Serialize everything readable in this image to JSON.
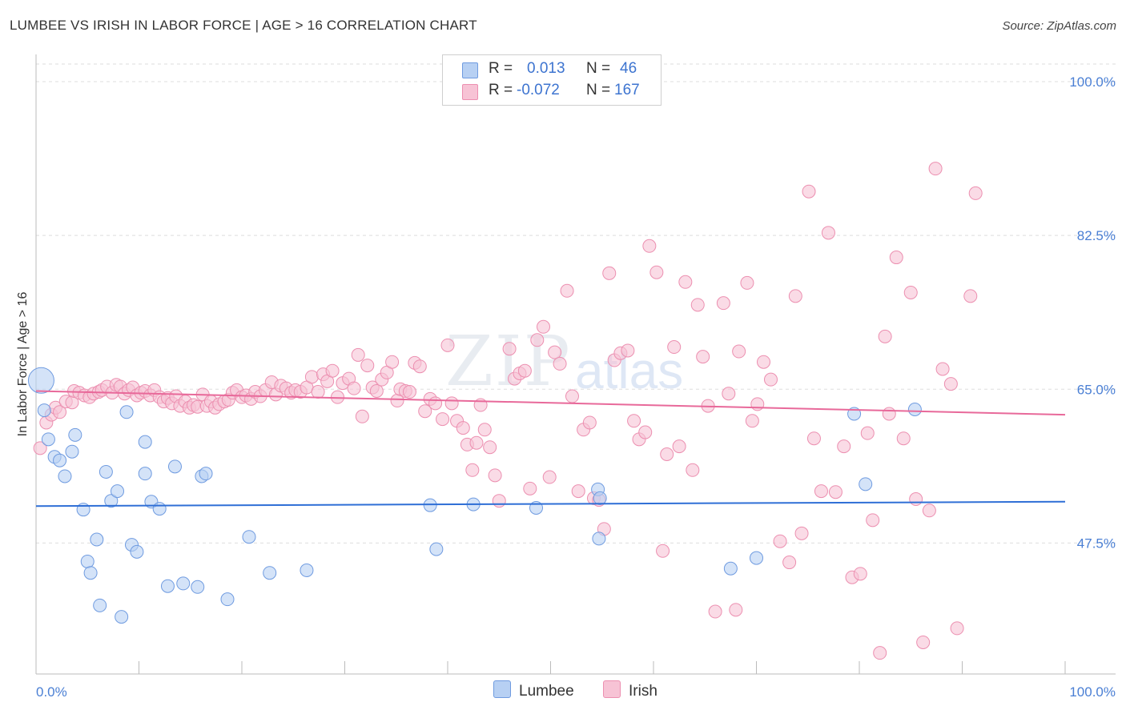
{
  "title": "LUMBEE VS IRISH IN LABOR FORCE | AGE > 16 CORRELATION CHART",
  "source": "Source: ZipAtlas.com",
  "watermark": {
    "zip": "ZIP",
    "atlas": "atlas"
  },
  "legend": {
    "lumbee": {
      "r_label": "R =",
      "r_value": "0.013",
      "n_label": "N =",
      "n_value": "46"
    },
    "irish": {
      "r_label": "R =",
      "r_value": "-0.072",
      "n_label": "N =",
      "n_value": "167"
    }
  },
  "bottom_legend": {
    "lumbee": "Lumbee",
    "irish": "Irish"
  },
  "colors": {
    "lumbee_fill": "#b7d0f3",
    "lumbee_stroke": "#6f9be0",
    "lumbee_line": "#2f6fd6",
    "irish_fill": "#f7c3d5",
    "irish_stroke": "#ec8fb0",
    "irish_line": "#e8699a",
    "axis_text": "#4a7fd4",
    "grid": "#dddddd"
  },
  "chart_data": {
    "type": "scatter",
    "title": "LUMBEE VS IRISH IN LABOR FORCE | AGE > 16 CORRELATION CHART",
    "xlabel": "",
    "ylabel": "In Labor Force | Age > 16",
    "xlim": [
      0,
      100
    ],
    "ylim": [
      32.6,
      102.0
    ],
    "x_tick_labels": [
      "0.0%",
      "100.0%"
    ],
    "y_ticks": [
      47.5,
      65.0,
      82.5,
      100.0
    ],
    "y_tick_labels": [
      "47.5%",
      "65.0%",
      "82.5%",
      "100.0%"
    ],
    "grid": true,
    "series": [
      {
        "name": "Lumbee",
        "R": 0.013,
        "N": 46,
        "trend": {
          "x": [
            0,
            100
          ],
          "y": [
            51.7,
            52.2
          ]
        },
        "points": [
          [
            0.5,
            66.0
          ],
          [
            0.8,
            62.6
          ],
          [
            1.2,
            59.3
          ],
          [
            1.8,
            57.3
          ],
          [
            2.3,
            56.9
          ],
          [
            2.8,
            55.1
          ],
          [
            3.5,
            57.9
          ],
          [
            3.8,
            59.8
          ],
          [
            4.6,
            51.3
          ],
          [
            5.0,
            45.4
          ],
          [
            5.3,
            44.1
          ],
          [
            5.9,
            47.9
          ],
          [
            6.2,
            40.4
          ],
          [
            6.8,
            55.6
          ],
          [
            7.3,
            52.3
          ],
          [
            7.9,
            53.4
          ],
          [
            8.3,
            39.1
          ],
          [
            8.8,
            62.4
          ],
          [
            9.3,
            47.3
          ],
          [
            9.8,
            46.5
          ],
          [
            10.6,
            59.0
          ],
          [
            10.6,
            55.4
          ],
          [
            11.2,
            52.2
          ],
          [
            12.0,
            51.4
          ],
          [
            12.8,
            42.6
          ],
          [
            13.5,
            56.2
          ],
          [
            14.3,
            42.9
          ],
          [
            15.7,
            42.5
          ],
          [
            16.1,
            55.1
          ],
          [
            16.5,
            55.4
          ],
          [
            18.6,
            41.1
          ],
          [
            20.7,
            48.2
          ],
          [
            22.7,
            44.1
          ],
          [
            26.3,
            44.4
          ],
          [
            38.3,
            51.8
          ],
          [
            38.9,
            46.8
          ],
          [
            42.5,
            51.9
          ],
          [
            48.6,
            51.5
          ],
          [
            54.6,
            53.6
          ],
          [
            54.7,
            48.0
          ],
          [
            54.8,
            52.6
          ],
          [
            67.5,
            44.6
          ],
          [
            70.0,
            45.8
          ],
          [
            79.5,
            62.2
          ],
          [
            80.6,
            54.2
          ],
          [
            85.4,
            62.7
          ]
        ]
      },
      {
        "name": "Irish",
        "R": -0.072,
        "N": 167,
        "trend": {
          "x": [
            0,
            100
          ],
          "y": [
            64.8,
            62.1
          ]
        },
        "points": [
          [
            0.4,
            58.3
          ],
          [
            1.0,
            61.2
          ],
          [
            1.5,
            62.1
          ],
          [
            1.9,
            62.9
          ],
          [
            2.3,
            62.4
          ],
          [
            2.9,
            63.6
          ],
          [
            3.5,
            63.5
          ],
          [
            3.7,
            64.8
          ],
          [
            4.2,
            64.6
          ],
          [
            4.7,
            64.3
          ],
          [
            5.2,
            64.1
          ],
          [
            5.6,
            64.5
          ],
          [
            6.1,
            64.7
          ],
          [
            6.4,
            64.9
          ],
          [
            6.9,
            65.3
          ],
          [
            7.4,
            64.6
          ],
          [
            7.8,
            65.5
          ],
          [
            8.2,
            65.3
          ],
          [
            8.6,
            64.5
          ],
          [
            9.0,
            64.9
          ],
          [
            9.4,
            65.2
          ],
          [
            9.8,
            64.3
          ],
          [
            10.2,
            64.6
          ],
          [
            10.6,
            64.8
          ],
          [
            11.1,
            64.3
          ],
          [
            11.5,
            64.9
          ],
          [
            12.0,
            64.1
          ],
          [
            12.4,
            63.6
          ],
          [
            12.8,
            64.0
          ],
          [
            13.2,
            63.4
          ],
          [
            13.6,
            64.2
          ],
          [
            14.0,
            63.1
          ],
          [
            14.5,
            63.6
          ],
          [
            14.9,
            62.9
          ],
          [
            15.3,
            63.2
          ],
          [
            15.7,
            63.0
          ],
          [
            16.2,
            64.4
          ],
          [
            16.6,
            63.1
          ],
          [
            17.0,
            63.6
          ],
          [
            17.4,
            62.9
          ],
          [
            17.8,
            63.3
          ],
          [
            18.3,
            63.6
          ],
          [
            18.7,
            63.8
          ],
          [
            19.1,
            64.6
          ],
          [
            19.5,
            64.9
          ],
          [
            20.0,
            64.1
          ],
          [
            20.4,
            64.3
          ],
          [
            20.9,
            63.9
          ],
          [
            21.3,
            64.7
          ],
          [
            21.8,
            64.2
          ],
          [
            22.3,
            64.9
          ],
          [
            22.9,
            65.8
          ],
          [
            23.3,
            64.4
          ],
          [
            23.8,
            65.4
          ],
          [
            24.3,
            65.1
          ],
          [
            24.8,
            64.6
          ],
          [
            25.2,
            64.9
          ],
          [
            25.7,
            64.7
          ],
          [
            26.3,
            65.2
          ],
          [
            26.8,
            66.4
          ],
          [
            27.4,
            64.7
          ],
          [
            27.9,
            66.7
          ],
          [
            28.3,
            65.9
          ],
          [
            28.8,
            67.1
          ],
          [
            29.3,
            64.1
          ],
          [
            29.8,
            65.7
          ],
          [
            30.4,
            66.2
          ],
          [
            30.9,
            65.1
          ],
          [
            31.3,
            68.9
          ],
          [
            31.7,
            61.9
          ],
          [
            32.2,
            67.7
          ],
          [
            32.7,
            65.2
          ],
          [
            33.1,
            64.8
          ],
          [
            33.6,
            66.1
          ],
          [
            34.1,
            66.9
          ],
          [
            34.6,
            68.1
          ],
          [
            35.1,
            63.7
          ],
          [
            35.4,
            65.0
          ],
          [
            35.9,
            64.8
          ],
          [
            36.3,
            64.7
          ],
          [
            36.8,
            68.0
          ],
          [
            37.3,
            67.6
          ],
          [
            37.8,
            62.5
          ],
          [
            38.3,
            63.9
          ],
          [
            38.8,
            63.4
          ],
          [
            39.5,
            61.6
          ],
          [
            40.0,
            70.0
          ],
          [
            40.4,
            63.4
          ],
          [
            40.9,
            61.4
          ],
          [
            41.5,
            60.6
          ],
          [
            41.9,
            58.7
          ],
          [
            42.4,
            55.8
          ],
          [
            42.8,
            58.9
          ],
          [
            43.2,
            63.2
          ],
          [
            43.6,
            60.4
          ],
          [
            44.1,
            58.4
          ],
          [
            44.6,
            55.2
          ],
          [
            45.0,
            52.3
          ],
          [
            46.0,
            69.6
          ],
          [
            46.5,
            66.2
          ],
          [
            47.0,
            66.8
          ],
          [
            47.5,
            67.1
          ],
          [
            48.0,
            53.7
          ],
          [
            48.7,
            70.6
          ],
          [
            49.3,
            72.1
          ],
          [
            49.9,
            55.0
          ],
          [
            50.4,
            69.2
          ],
          [
            50.9,
            67.9
          ],
          [
            51.6,
            76.2
          ],
          [
            52.1,
            64.2
          ],
          [
            52.7,
            53.4
          ],
          [
            53.2,
            60.4
          ],
          [
            53.8,
            61.2
          ],
          [
            54.2,
            52.6
          ],
          [
            54.7,
            52.4
          ],
          [
            55.2,
            49.1
          ],
          [
            55.7,
            78.2
          ],
          [
            56.2,
            68.3
          ],
          [
            56.8,
            69.1
          ],
          [
            57.5,
            69.4
          ],
          [
            58.1,
            61.4
          ],
          [
            58.6,
            59.3
          ],
          [
            59.2,
            60.1
          ],
          [
            59.6,
            81.3
          ],
          [
            60.3,
            78.3
          ],
          [
            60.9,
            46.6
          ],
          [
            61.3,
            57.6
          ],
          [
            62.0,
            69.8
          ],
          [
            62.5,
            58.5
          ],
          [
            63.1,
            77.2
          ],
          [
            63.8,
            55.8
          ],
          [
            64.3,
            74.6
          ],
          [
            64.8,
            68.7
          ],
          [
            65.3,
            63.1
          ],
          [
            66.0,
            39.7
          ],
          [
            66.8,
            74.8
          ],
          [
            67.3,
            64.5
          ],
          [
            68.0,
            39.9
          ],
          [
            68.3,
            69.3
          ],
          [
            69.1,
            77.1
          ],
          [
            69.6,
            61.4
          ],
          [
            70.1,
            63.3
          ],
          [
            70.7,
            68.1
          ],
          [
            71.4,
            66.1
          ],
          [
            72.3,
            47.7
          ],
          [
            73.2,
            45.3
          ],
          [
            73.8,
            75.6
          ],
          [
            74.4,
            48.6
          ],
          [
            75.1,
            87.5
          ],
          [
            75.6,
            59.4
          ],
          [
            76.3,
            53.4
          ],
          [
            77.0,
            82.8
          ],
          [
            77.7,
            53.3
          ],
          [
            78.5,
            58.5
          ],
          [
            79.3,
            43.6
          ],
          [
            80.1,
            44.0
          ],
          [
            80.8,
            60.0
          ],
          [
            81.3,
            50.1
          ],
          [
            82.0,
            35.0
          ],
          [
            82.5,
            71.0
          ],
          [
            82.9,
            62.2
          ],
          [
            83.6,
            80.0
          ],
          [
            84.3,
            59.4
          ],
          [
            85.0,
            76.0
          ],
          [
            85.5,
            52.5
          ],
          [
            86.2,
            36.2
          ],
          [
            86.8,
            51.2
          ],
          [
            87.4,
            90.1
          ],
          [
            88.1,
            67.3
          ],
          [
            88.9,
            65.6
          ],
          [
            89.5,
            37.8
          ],
          [
            90.8,
            75.6
          ],
          [
            91.3,
            87.3
          ]
        ]
      }
    ]
  }
}
